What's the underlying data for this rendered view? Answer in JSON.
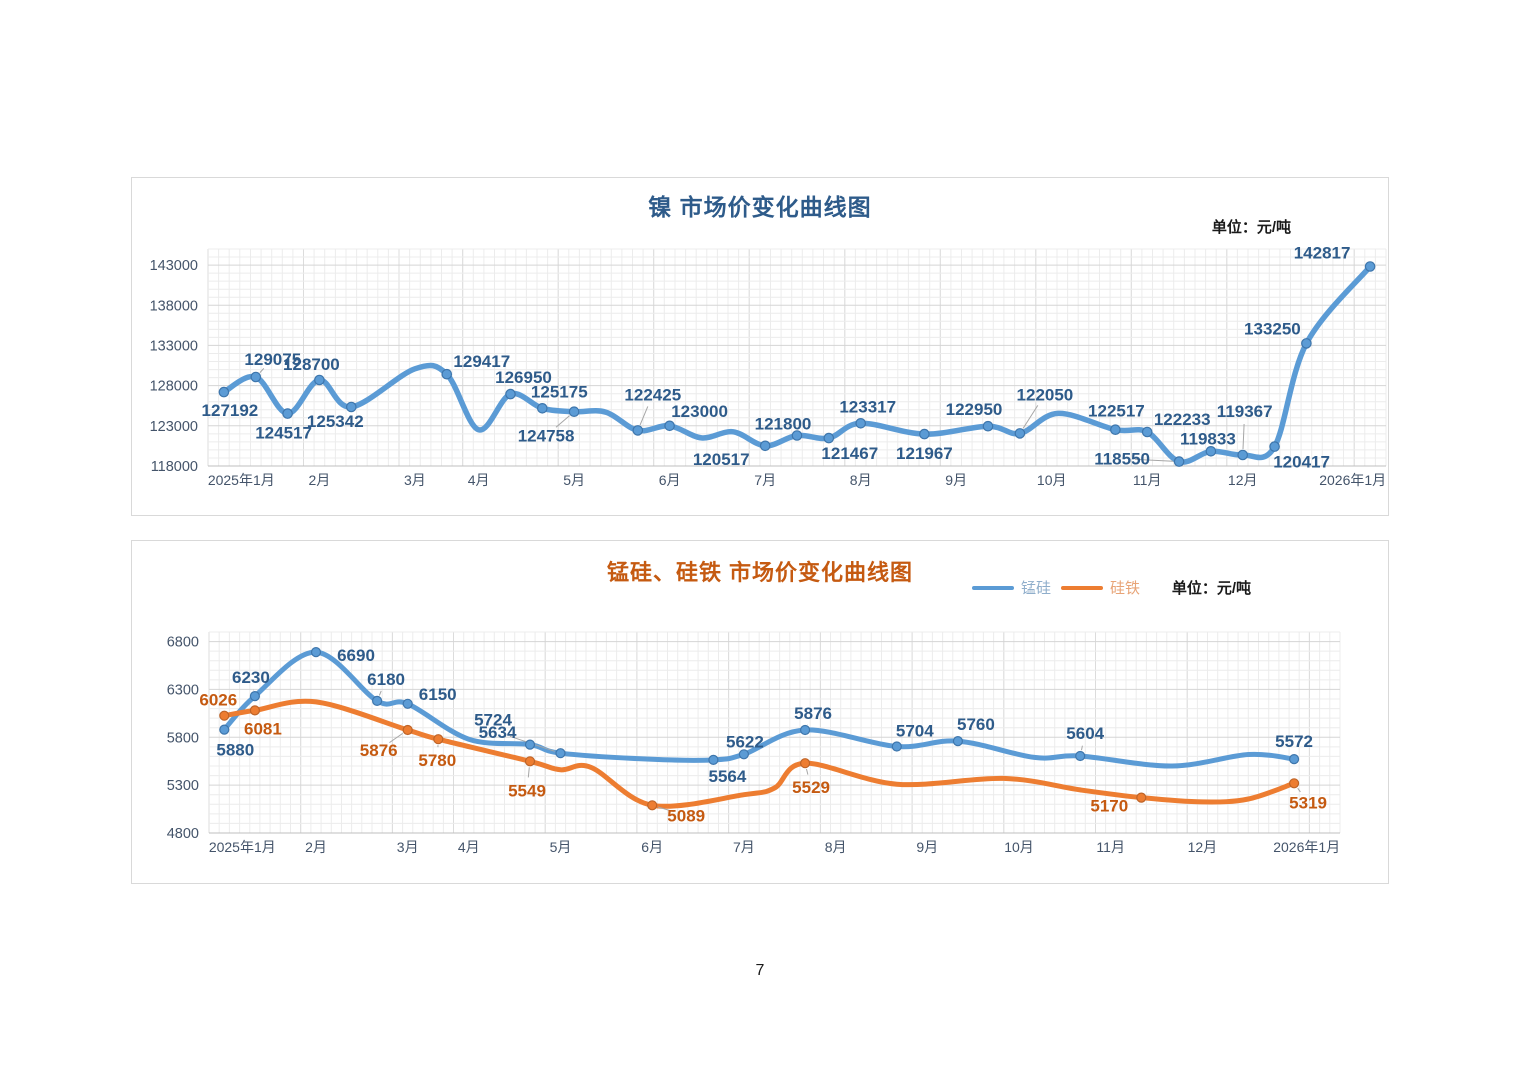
{
  "page": {
    "number": "7"
  },
  "chart_data": [
    {
      "type": "line",
      "title": "镍  市场价变化曲线图",
      "title_color": "#2E5B8A",
      "unit": "单位：元/吨",
      "legend": null,
      "legend_position": "none",
      "grid": "on",
      "xlabel": "",
      "ylabel": "",
      "x_month_labels": [
        "2025年1月",
        "2月",
        "3月",
        "4月",
        "5月",
        "6月",
        "7月",
        "8月",
        "9月",
        "10月",
        "11月",
        "12月",
        "2026年1月"
      ],
      "x_month_slots": [
        0,
        3,
        6,
        8,
        11,
        14,
        17,
        20,
        23,
        26,
        29,
        32,
        36
      ],
      "slots_total": 37,
      "ylim": [
        118000,
        145000
      ],
      "yticks": [
        118000,
        123000,
        128000,
        133000,
        138000,
        143000
      ],
      "y_minor_step": 1000,
      "axis_text_color": "#44546A",
      "series": [
        {
          "name": "镍",
          "color": "#5B9BD5",
          "marker_stroke": "#3E76AC",
          "label_color": "#2E5B8A",
          "points": [
            {
              "slot": 0,
              "value": 127192,
              "dx": 6,
              "dy": 18
            },
            {
              "slot": 1,
              "value": 129075,
              "dx": 17,
              "dy": -18,
              "leader": true
            },
            {
              "slot": 2,
              "value": 124517,
              "dx": -4,
              "dy": 19
            },
            {
              "slot": 3,
              "value": 128700,
              "dx": -8,
              "dy": -16
            },
            {
              "slot": 4,
              "value": 125342,
              "dx": -16,
              "dy": 14
            },
            {
              "slot": 6,
              "value": 130100,
              "est": true
            },
            {
              "slot": 7,
              "value": 129417,
              "dx": 35,
              "dy": -13
            },
            {
              "slot": 8,
              "value": 122500,
              "est": true
            },
            {
              "slot": 9,
              "value": 126950,
              "dx": 13,
              "dy": -17
            },
            {
              "slot": 10,
              "value": 125175,
              "dx": 17,
              "dy": -17
            },
            {
              "slot": 11,
              "value": 124758,
              "dx": -28,
              "dy": 24,
              "leader": true
            },
            {
              "slot": 12,
              "value": 124700,
              "est": true
            },
            {
              "slot": 13,
              "value": 122425,
              "dx": 15,
              "dy": -36,
              "leader": true
            },
            {
              "slot": 14,
              "value": 123000,
              "dx": 30,
              "dy": -15
            },
            {
              "slot": 15,
              "value": 121500,
              "est": true
            },
            {
              "slot": 16,
              "value": 122250,
              "est": true
            },
            {
              "slot": 17,
              "value": 120517,
              "dx": -44,
              "dy": 13
            },
            {
              "slot": 18,
              "value": 121800,
              "dx": -14,
              "dy": -12
            },
            {
              "slot": 19,
              "value": 121467,
              "dx": 21,
              "dy": 15
            },
            {
              "slot": 20,
              "value": 123317,
              "dx": 7,
              "dy": -17
            },
            {
              "slot": 22,
              "value": 121967,
              "dx": 0,
              "dy": 19
            },
            {
              "slot": 24,
              "value": 122950,
              "dx": -14,
              "dy": -17
            },
            {
              "slot": 25,
              "value": 122050,
              "dx": 25,
              "dy": -39,
              "leader": true
            },
            {
              "slot": 26.2,
              "value": 124550,
              "est": true
            },
            {
              "slot": 28,
              "value": 122517,
              "dx": 1,
              "dy": -19
            },
            {
              "slot": 29,
              "value": 122233,
              "dx": 35,
              "dy": -13
            },
            {
              "slot": 30,
              "value": 118550,
              "dx": -57,
              "dy": -3,
              "leader": true
            },
            {
              "slot": 31,
              "value": 119833,
              "dx": -3,
              "dy": -13
            },
            {
              "slot": 32,
              "value": 119367,
              "dx": 2,
              "dy": -44,
              "leader": true
            },
            {
              "slot": 33,
              "value": 120417,
              "dx": 27,
              "dy": 15
            },
            {
              "slot": 34,
              "value": 133250,
              "dx": -34,
              "dy": -15
            },
            {
              "slot": 36,
              "value": 142817,
              "dx": -48,
              "dy": -14
            }
          ]
        }
      ]
    },
    {
      "type": "line",
      "title": "锰硅、硅铁  市场价变化曲线图",
      "title_color": "#C55A11",
      "unit": "单位：元/吨",
      "legend": [
        {
          "label": "锰硅",
          "color": "#5B9BD5",
          "text_color": "#8FAECB"
        },
        {
          "label": "硅铁",
          "color": "#ED7D31",
          "text_color": "#E8A477"
        }
      ],
      "legend_position": "top-right",
      "grid": "on",
      "xlabel": "",
      "ylabel": "",
      "x_month_labels": [
        "2025年1月",
        "2月",
        "3月",
        "4月",
        "5月",
        "6月",
        "7月",
        "8月",
        "9月",
        "10月",
        "11月",
        "12月",
        "2026年1月"
      ],
      "x_month_slots": [
        0,
        3,
        6,
        8,
        11,
        14,
        17,
        20,
        23,
        26,
        29,
        32,
        36
      ],
      "slots_total": 37,
      "ylim": [
        4800,
        6900
      ],
      "yticks": [
        4800,
        5300,
        5800,
        6300,
        6800
      ],
      "y_minor_step": 100,
      "axis_text_color": "#44546A",
      "series": [
        {
          "name": "锰硅",
          "color": "#5B9BD5",
          "marker_stroke": "#3E76AC",
          "label_color": "#2E5B8A",
          "points": [
            {
              "slot": 0,
              "value": 5880,
              "dx": 11,
              "dy": 20
            },
            {
              "slot": 1,
              "value": 6230,
              "dx": -4,
              "dy": -19,
              "leader": true
            },
            {
              "slot": 3,
              "value": 6690,
              "dx": 40,
              "dy": 3
            },
            {
              "slot": 5,
              "value": 6180,
              "dx": 9,
              "dy": -22,
              "leader": true
            },
            {
              "slot": 6,
              "value": 6150,
              "dx": 30,
              "dy": -10
            },
            {
              "slot": 8,
              "value": 5780,
              "est": true
            },
            {
              "slot": 10,
              "value": 5724,
              "dx": -37,
              "dy": -25
            },
            {
              "slot": 11,
              "value": 5634,
              "dx": -63,
              "dy": -21,
              "leader": true
            },
            {
              "slot": 14,
              "value": 5570,
              "est": true
            },
            {
              "slot": 16,
              "value": 5564,
              "dx": 14,
              "dy": 16
            },
            {
              "slot": 17,
              "value": 5622,
              "dx": 1,
              "dy": -13
            },
            {
              "slot": 19,
              "value": 5876,
              "dx": 8,
              "dy": -17,
              "leader": true
            },
            {
              "slot": 22,
              "value": 5704,
              "dx": 18,
              "dy": -16
            },
            {
              "slot": 24,
              "value": 5760,
              "dx": 18,
              "dy": -17
            },
            {
              "slot": 26.5,
              "value": 5590,
              "est": true
            },
            {
              "slot": 28,
              "value": 5604,
              "dx": 5,
              "dy": -23,
              "leader": true
            },
            {
              "slot": 31,
              "value": 5500,
              "est": true
            },
            {
              "slot": 33.5,
              "value": 5620,
              "est": true
            },
            {
              "slot": 35,
              "value": 5572,
              "dx": 0,
              "dy": -18
            }
          ]
        },
        {
          "name": "硅铁",
          "color": "#ED7D31",
          "marker_stroke": "#BE6428",
          "label_color": "#C55A11",
          "points": [
            {
              "slot": 0,
              "value": 6026,
              "dx": -6,
              "dy": -16
            },
            {
              "slot": 1,
              "value": 6081,
              "dx": 8,
              "dy": 18
            },
            {
              "slot": 3,
              "value": 6170,
              "est": true
            },
            {
              "slot": 6,
              "value": 5876,
              "dx": -29,
              "dy": 20,
              "leader": true
            },
            {
              "slot": 7,
              "value": 5780,
              "dx": -1,
              "dy": 21,
              "leader": true
            },
            {
              "slot": 10,
              "value": 5549,
              "dx": -3,
              "dy": 29,
              "leader": true
            },
            {
              "slot": 11,
              "value": 5460,
              "est": true
            },
            {
              "slot": 12,
              "value": 5485,
              "est": true
            },
            {
              "slot": 14,
              "value": 5089,
              "dx": 34,
              "dy": 10,
              "leader": true
            },
            {
              "slot": 17,
              "value": 5200,
              "est": true
            },
            {
              "slot": 18,
              "value": 5270,
              "est": true
            },
            {
              "slot": 19,
              "value": 5529,
              "dx": 6,
              "dy": 24,
              "leader": true
            },
            {
              "slot": 22,
              "value": 5310,
              "est": true
            },
            {
              "slot": 25.5,
              "value": 5370,
              "est": true
            },
            {
              "slot": 28,
              "value": 5250,
              "est": true
            },
            {
              "slot": 30,
              "value": 5170,
              "dx": -32,
              "dy": 8
            },
            {
              "slot": 32,
              "value": 5125,
              "est": true
            },
            {
              "slot": 33.5,
              "value": 5155,
              "est": true
            },
            {
              "slot": 35,
              "value": 5319,
              "dx": 14,
              "dy": 19,
              "leader": true
            }
          ]
        }
      ]
    }
  ]
}
